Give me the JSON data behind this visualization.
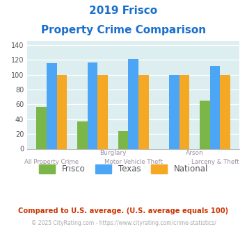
{
  "title_line1": "2019 Frisco",
  "title_line2": "Property Crime Comparison",
  "categories": [
    "All Property Crime",
    "Burglary",
    "Motor Vehicle Theft",
    "Arson",
    "Larceny & Theft"
  ],
  "upper_labels": [
    "",
    "Burglary",
    "",
    "Arson",
    ""
  ],
  "lower_labels": [
    "All Property Crime",
    "",
    "Motor Vehicle Theft",
    "",
    "Larceny & Theft"
  ],
  "frisco": [
    57,
    37,
    24,
    0,
    65
  ],
  "texas": [
    115,
    116,
    121,
    100,
    112
  ],
  "national": [
    100,
    100,
    100,
    100,
    100
  ],
  "frisco_color": "#7ab648",
  "texas_color": "#4da6f5",
  "national_color": "#f5a823",
  "ylim": [
    0,
    145
  ],
  "yticks": [
    0,
    20,
    40,
    60,
    80,
    100,
    120,
    140
  ],
  "plot_bg": "#ddeef0",
  "title_color": "#1a6fcc",
  "upper_label_color": "#9b8fa0",
  "lower_label_color": "#9b8fa0",
  "footnote1": "Compared to U.S. average. (U.S. average equals 100)",
  "footnote2": "© 2025 CityRating.com - https://www.cityrating.com/crime-statistics/",
  "footnote1_color": "#cc3300",
  "footnote2_color": "#aaaaaa",
  "legend_labels": [
    "Frisco",
    "Texas",
    "National"
  ],
  "legend_text_color": "#555555",
  "bar_width": 0.25
}
